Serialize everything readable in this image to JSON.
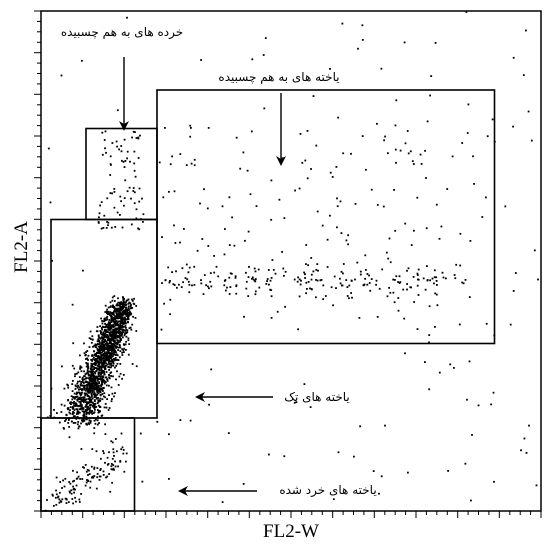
{
  "chart_data": {
    "type": "scatter",
    "title": "",
    "xlabel": "FL2-W",
    "ylabel": "FL2-A",
    "xlim": [
      0,
      1000
    ],
    "ylim": [
      0,
      1000
    ],
    "grid": false,
    "legend": "none",
    "gates": [
      {
        "name": "singlets",
        "x": [
          20,
          232
        ],
        "y": [
          186,
          583
        ]
      },
      {
        "name": "cell-doublets",
        "x": [
          232,
          907
        ],
        "y": [
          335,
          842
        ]
      },
      {
        "name": "debris-doublets",
        "x": [
          90,
          232
        ],
        "y": [
          583,
          765
        ]
      },
      {
        "name": "debris",
        "x": [
          0,
          187
        ],
        "y": [
          0,
          186
        ]
      }
    ],
    "clusters": [
      {
        "name": "singlets",
        "count": 1700,
        "x_center": 130,
        "y_center": 300,
        "spread": "elongated-diagonal"
      },
      {
        "name": "doublets-band",
        "count": 180,
        "x_range": [
          240,
          850
        ],
        "y_center": 460
      },
      {
        "name": "doublets-scatter",
        "count": 140,
        "x_range": [
          240,
          900
        ],
        "y_range": [
          360,
          780
        ]
      },
      {
        "name": "debris-doublets",
        "count": 80,
        "x_range": [
          115,
          205
        ],
        "y_range": [
          560,
          760
        ]
      },
      {
        "name": "debris",
        "count": 140,
        "x_range": [
          0,
          190
        ],
        "y_range": [
          0,
          190
        ]
      },
      {
        "name": "background",
        "count": 160,
        "x_range": [
          0,
          1000
        ],
        "y_range": [
          0,
          1000
        ]
      }
    ],
    "annotations": [
      {
        "text": "خرده های به هم چسبیده",
        "target": "debris-doublets"
      },
      {
        "text": "یاخته های به هم چسبیده",
        "target": "cell-doublets"
      },
      {
        "text": "یاخته های تک",
        "target": "singlets"
      },
      {
        "text": "یاخته های خرد شده",
        "target": "debris"
      }
    ]
  }
}
